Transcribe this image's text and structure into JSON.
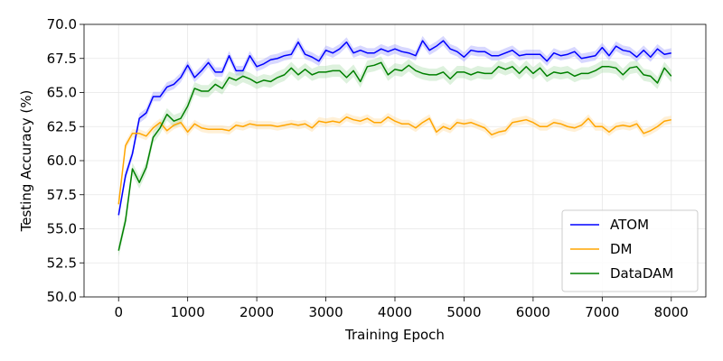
{
  "chart_data": {
    "type": "line",
    "xlabel": "Training Epoch",
    "ylabel": "Testing Accuracy (%)",
    "xlim": [
      -500,
      8500
    ],
    "ylim": [
      50.0,
      70.0
    ],
    "xticks": [
      0,
      1000,
      2000,
      3000,
      4000,
      5000,
      6000,
      7000,
      8000
    ],
    "yticks": [
      50.0,
      52.5,
      55.0,
      57.5,
      60.0,
      62.5,
      65.0,
      67.5,
      70.0
    ],
    "xtick_labels": [
      "0",
      "1000",
      "2000",
      "3000",
      "4000",
      "5000",
      "6000",
      "7000",
      "8000"
    ],
    "ytick_labels": [
      "50.0",
      "52.5",
      "55.0",
      "57.5",
      "60.0",
      "62.5",
      "65.0",
      "67.5",
      "70.0"
    ],
    "grid": true,
    "legend_position": "lower-right",
    "shaded_band": true,
    "x": [
      0,
      100,
      200,
      300,
      400,
      500,
      600,
      700,
      800,
      900,
      1000,
      1100,
      1200,
      1300,
      1400,
      1500,
      1600,
      1700,
      1800,
      1900,
      2000,
      2100,
      2200,
      2300,
      2400,
      2500,
      2600,
      2700,
      2800,
      2900,
      3000,
      3100,
      3200,
      3300,
      3400,
      3500,
      3600,
      3700,
      3800,
      3900,
      4000,
      4100,
      4200,
      4300,
      4400,
      4500,
      4600,
      4700,
      4800,
      4900,
      5000,
      5100,
      5200,
      5300,
      5400,
      5500,
      5600,
      5700,
      5800,
      5900,
      6000,
      6100,
      6200,
      6300,
      6400,
      6500,
      6600,
      6700,
      6800,
      6900,
      7000,
      7100,
      7200,
      7300,
      7400,
      7500,
      7600,
      7700,
      7800,
      7900,
      8000
    ],
    "series": [
      {
        "name": "ATOM",
        "color": "#0000ff",
        "band_color": "#8c8cff",
        "band_width": 0.35,
        "values": [
          56.0,
          58.9,
          60.5,
          63.1,
          63.5,
          64.7,
          64.7,
          65.4,
          65.6,
          66.1,
          67.0,
          66.1,
          66.6,
          67.2,
          66.5,
          66.5,
          67.7,
          66.6,
          66.6,
          67.7,
          66.9,
          67.1,
          67.4,
          67.5,
          67.7,
          67.8,
          68.7,
          67.8,
          67.6,
          67.3,
          68.1,
          67.9,
          68.2,
          68.7,
          67.9,
          68.1,
          67.9,
          67.9,
          68.2,
          68.0,
          68.2,
          68.0,
          67.9,
          67.7,
          68.8,
          68.1,
          68.4,
          68.8,
          68.2,
          68.0,
          67.6,
          68.1,
          68.0,
          68.0,
          67.7,
          67.7,
          67.9,
          68.1,
          67.7,
          67.8,
          67.8,
          67.8,
          67.3,
          67.9,
          67.7,
          67.8,
          68.0,
          67.5,
          67.6,
          67.7,
          68.3,
          67.7,
          68.4,
          68.1,
          68.0,
          67.6,
          68.1,
          67.6,
          68.2,
          67.8,
          67.9
        ]
      },
      {
        "name": "DM",
        "color": "#ffa500",
        "band_color": "#ffd58a",
        "band_width": 0.3,
        "values": [
          56.8,
          61.1,
          62.0,
          62.0,
          61.8,
          62.4,
          62.8,
          62.2,
          62.6,
          62.8,
          62.1,
          62.7,
          62.4,
          62.3,
          62.3,
          62.3,
          62.2,
          62.6,
          62.5,
          62.7,
          62.6,
          62.6,
          62.6,
          62.5,
          62.6,
          62.7,
          62.6,
          62.7,
          62.4,
          62.9,
          62.8,
          62.9,
          62.8,
          63.2,
          63.0,
          62.9,
          63.1,
          62.8,
          62.8,
          63.2,
          62.9,
          62.7,
          62.7,
          62.4,
          62.8,
          63.1,
          62.1,
          62.5,
          62.3,
          62.8,
          62.7,
          62.8,
          62.6,
          62.4,
          61.9,
          62.1,
          62.2,
          62.8,
          62.9,
          63.0,
          62.8,
          62.5,
          62.5,
          62.8,
          62.7,
          62.5,
          62.4,
          62.6,
          63.1,
          62.5,
          62.5,
          62.1,
          62.5,
          62.6,
          62.5,
          62.7,
          62.0,
          62.2,
          62.5,
          62.9,
          63.0
        ]
      },
      {
        "name": "DataDAM",
        "color": "#008000",
        "band_color": "#9fd89f",
        "band_width": 0.45,
        "values": [
          53.4,
          55.6,
          59.4,
          58.4,
          59.5,
          61.7,
          62.4,
          63.4,
          62.9,
          63.1,
          64.0,
          65.3,
          65.1,
          65.1,
          65.6,
          65.3,
          66.1,
          65.9,
          66.2,
          66.0,
          65.7,
          65.9,
          65.8,
          66.1,
          66.3,
          66.8,
          66.3,
          66.7,
          66.3,
          66.5,
          66.5,
          66.6,
          66.6,
          66.1,
          66.6,
          65.8,
          66.9,
          67.0,
          67.2,
          66.3,
          66.7,
          66.6,
          67.0,
          66.6,
          66.4,
          66.3,
          66.3,
          66.5,
          66.0,
          66.5,
          66.5,
          66.3,
          66.5,
          66.4,
          66.4,
          66.9,
          66.7,
          66.9,
          66.4,
          66.9,
          66.4,
          66.8,
          66.2,
          66.5,
          66.4,
          66.5,
          66.2,
          66.4,
          66.4,
          66.6,
          66.9,
          66.9,
          66.8,
          66.3,
          66.8,
          66.9,
          66.3,
          66.2,
          65.7,
          66.8,
          66.2
        ]
      }
    ]
  }
}
